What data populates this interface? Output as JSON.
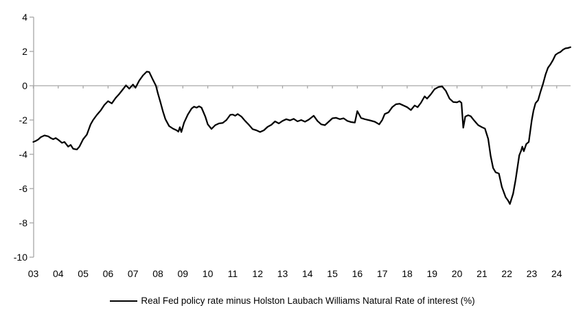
{
  "chart_data": {
    "type": "line",
    "title": "",
    "xlabel": "",
    "ylabel": "",
    "grid": "none",
    "axis_color": "#a6a6a6",
    "line_color": "#000000",
    "ylim": [
      -10,
      4
    ],
    "y_ticks": [
      4,
      2,
      0,
      -2,
      -4,
      -6,
      -8,
      -10
    ],
    "x_tick_labels": [
      "03",
      "04",
      "05",
      "06",
      "07",
      "08",
      "09",
      "10",
      "11",
      "12",
      "13",
      "14",
      "15",
      "16",
      "17",
      "18",
      "19",
      "20",
      "21",
      "22",
      "23",
      "24"
    ],
    "x_start_year": 2003,
    "x_range": [
      2003.0,
      2024.55
    ],
    "legend": {
      "position": "bottom",
      "entries": [
        {
          "label": "Real Fed policy rate minus Holston Laubach Williams Natural Rate of interest (%)",
          "color": "#000000"
        }
      ]
    },
    "series": [
      {
        "name": "Real Fed policy rate minus Holston Laubach Williams Natural Rate of interest (%)",
        "points": [
          [
            2003.0,
            -3.28
          ],
          [
            2003.1,
            -3.22
          ],
          [
            2003.2,
            -3.13
          ],
          [
            2003.3,
            -3.0
          ],
          [
            2003.45,
            -2.9
          ],
          [
            2003.6,
            -2.95
          ],
          [
            2003.7,
            -3.05
          ],
          [
            2003.8,
            -3.12
          ],
          [
            2003.9,
            -3.05
          ],
          [
            2004.0,
            -3.15
          ],
          [
            2004.15,
            -3.33
          ],
          [
            2004.25,
            -3.28
          ],
          [
            2004.4,
            -3.55
          ],
          [
            2004.5,
            -3.45
          ],
          [
            2004.6,
            -3.68
          ],
          [
            2004.75,
            -3.72
          ],
          [
            2004.85,
            -3.55
          ],
          [
            2005.0,
            -3.12
          ],
          [
            2005.15,
            -2.85
          ],
          [
            2005.3,
            -2.25
          ],
          [
            2005.4,
            -2.0
          ],
          [
            2005.55,
            -1.7
          ],
          [
            2005.7,
            -1.45
          ],
          [
            2005.85,
            -1.12
          ],
          [
            2006.0,
            -0.9
          ],
          [
            2006.15,
            -1.03
          ],
          [
            2006.3,
            -0.72
          ],
          [
            2006.45,
            -0.48
          ],
          [
            2006.6,
            -0.2
          ],
          [
            2006.72,
            0.02
          ],
          [
            2006.85,
            -0.17
          ],
          [
            2007.0,
            0.07
          ],
          [
            2007.1,
            -0.12
          ],
          [
            2007.25,
            0.3
          ],
          [
            2007.4,
            0.6
          ],
          [
            2007.55,
            0.82
          ],
          [
            2007.65,
            0.8
          ],
          [
            2007.8,
            0.35
          ],
          [
            2007.92,
            0.0
          ],
          [
            2008.0,
            -0.45
          ],
          [
            2008.1,
            -0.95
          ],
          [
            2008.2,
            -1.5
          ],
          [
            2008.3,
            -1.95
          ],
          [
            2008.45,
            -2.35
          ],
          [
            2008.6,
            -2.5
          ],
          [
            2008.75,
            -2.6
          ],
          [
            2008.82,
            -2.68
          ],
          [
            2008.88,
            -2.42
          ],
          [
            2008.94,
            -2.7
          ],
          [
            2009.05,
            -2.15
          ],
          [
            2009.2,
            -1.68
          ],
          [
            2009.35,
            -1.33
          ],
          [
            2009.45,
            -1.22
          ],
          [
            2009.55,
            -1.28
          ],
          [
            2009.65,
            -1.2
          ],
          [
            2009.75,
            -1.28
          ],
          [
            2009.9,
            -1.8
          ],
          [
            2010.0,
            -2.25
          ],
          [
            2010.15,
            -2.52
          ],
          [
            2010.3,
            -2.3
          ],
          [
            2010.45,
            -2.2
          ],
          [
            2010.6,
            -2.17
          ],
          [
            2010.75,
            -2.0
          ],
          [
            2010.9,
            -1.7
          ],
          [
            2011.0,
            -1.68
          ],
          [
            2011.1,
            -1.75
          ],
          [
            2011.2,
            -1.65
          ],
          [
            2011.35,
            -1.8
          ],
          [
            2011.5,
            -2.05
          ],
          [
            2011.65,
            -2.28
          ],
          [
            2011.8,
            -2.53
          ],
          [
            2011.95,
            -2.6
          ],
          [
            2012.1,
            -2.7
          ],
          [
            2012.25,
            -2.6
          ],
          [
            2012.4,
            -2.4
          ],
          [
            2012.55,
            -2.28
          ],
          [
            2012.7,
            -2.08
          ],
          [
            2012.85,
            -2.2
          ],
          [
            2013.0,
            -2.05
          ],
          [
            2013.15,
            -1.95
          ],
          [
            2013.3,
            -2.02
          ],
          [
            2013.45,
            -1.93
          ],
          [
            2013.6,
            -2.08
          ],
          [
            2013.75,
            -2.0
          ],
          [
            2013.9,
            -2.1
          ],
          [
            2014.05,
            -1.98
          ],
          [
            2014.25,
            -1.75
          ],
          [
            2014.4,
            -2.05
          ],
          [
            2014.55,
            -2.25
          ],
          [
            2014.7,
            -2.3
          ],
          [
            2014.85,
            -2.1
          ],
          [
            2015.0,
            -1.9
          ],
          [
            2015.15,
            -1.87
          ],
          [
            2015.3,
            -1.95
          ],
          [
            2015.45,
            -1.9
          ],
          [
            2015.6,
            -2.05
          ],
          [
            2015.75,
            -2.12
          ],
          [
            2015.9,
            -2.15
          ],
          [
            2016.0,
            -1.48
          ],
          [
            2016.15,
            -1.88
          ],
          [
            2016.3,
            -1.95
          ],
          [
            2016.5,
            -2.02
          ],
          [
            2016.7,
            -2.1
          ],
          [
            2016.88,
            -2.25
          ],
          [
            2017.0,
            -2.0
          ],
          [
            2017.1,
            -1.65
          ],
          [
            2017.25,
            -1.55
          ],
          [
            2017.4,
            -1.25
          ],
          [
            2017.55,
            -1.08
          ],
          [
            2017.7,
            -1.05
          ],
          [
            2017.85,
            -1.15
          ],
          [
            2018.0,
            -1.25
          ],
          [
            2018.15,
            -1.42
          ],
          [
            2018.3,
            -1.15
          ],
          [
            2018.42,
            -1.25
          ],
          [
            2018.55,
            -1.0
          ],
          [
            2018.7,
            -0.62
          ],
          [
            2018.8,
            -0.75
          ],
          [
            2018.95,
            -0.5
          ],
          [
            2019.1,
            -0.2
          ],
          [
            2019.25,
            -0.08
          ],
          [
            2019.4,
            -0.03
          ],
          [
            2019.55,
            -0.3
          ],
          [
            2019.7,
            -0.75
          ],
          [
            2019.85,
            -0.95
          ],
          [
            2020.0,
            -0.97
          ],
          [
            2020.1,
            -0.9
          ],
          [
            2020.18,
            -1.0
          ],
          [
            2020.25,
            -2.45
          ],
          [
            2020.33,
            -1.8
          ],
          [
            2020.45,
            -1.72
          ],
          [
            2020.55,
            -1.78
          ],
          [
            2020.7,
            -2.05
          ],
          [
            2020.85,
            -2.3
          ],
          [
            2021.0,
            -2.42
          ],
          [
            2021.12,
            -2.5
          ],
          [
            2021.25,
            -3.1
          ],
          [
            2021.35,
            -4.1
          ],
          [
            2021.45,
            -4.8
          ],
          [
            2021.55,
            -5.05
          ],
          [
            2021.68,
            -5.12
          ],
          [
            2021.8,
            -5.9
          ],
          [
            2021.95,
            -6.5
          ],
          [
            2022.05,
            -6.7
          ],
          [
            2022.12,
            -6.9
          ],
          [
            2022.25,
            -6.3
          ],
          [
            2022.35,
            -5.5
          ],
          [
            2022.5,
            -4.05
          ],
          [
            2022.57,
            -3.8
          ],
          [
            2022.62,
            -3.55
          ],
          [
            2022.68,
            -3.82
          ],
          [
            2022.78,
            -3.4
          ],
          [
            2022.88,
            -3.28
          ],
          [
            2023.0,
            -2.0
          ],
          [
            2023.07,
            -1.45
          ],
          [
            2023.15,
            -1.02
          ],
          [
            2023.25,
            -0.85
          ],
          [
            2023.35,
            -0.35
          ],
          [
            2023.45,
            0.1
          ],
          [
            2023.55,
            0.65
          ],
          [
            2023.65,
            1.05
          ],
          [
            2023.75,
            1.25
          ],
          [
            2023.85,
            1.5
          ],
          [
            2023.95,
            1.8
          ],
          [
            2024.05,
            1.9
          ],
          [
            2024.15,
            1.97
          ],
          [
            2024.25,
            2.1
          ],
          [
            2024.35,
            2.18
          ],
          [
            2024.45,
            2.2
          ],
          [
            2024.55,
            2.25
          ]
        ]
      }
    ]
  }
}
